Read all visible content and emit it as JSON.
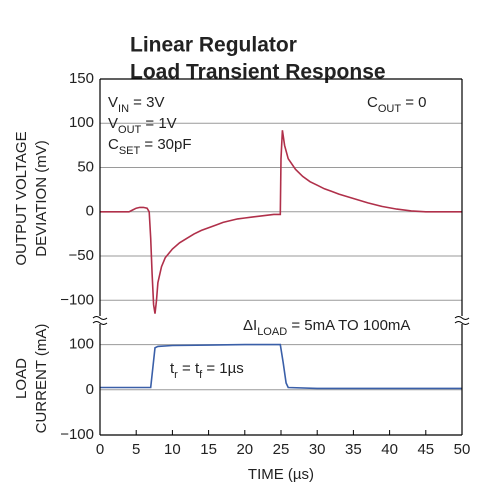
{
  "chart_data": [
    {
      "type": "line",
      "title": [
        "Linear Regulator",
        "Load Transient Response"
      ],
      "ylabel": [
        "OUTPUT VOLTAGE",
        "DEVIATION (mV)"
      ],
      "color": "#b0304a",
      "ylim": [
        -120,
        150
      ],
      "yticks": [
        {
          "value": -100,
          "label": "−100"
        },
        {
          "value": -50,
          "label": "−50"
        },
        0,
        50,
        100,
        150
      ],
      "grid": true,
      "xlim": [
        0,
        50
      ],
      "x": [
        0,
        1,
        2,
        3,
        4,
        4.5,
        5,
        5.5,
        6,
        6.5,
        6.8,
        7,
        7.2,
        7.4,
        7.6,
        7.8,
        8,
        8.5,
        9,
        10,
        11,
        12,
        13,
        14,
        15,
        16,
        17,
        18,
        19,
        20,
        21,
        22,
        23,
        24,
        24.9,
        25,
        25.2,
        25.5,
        26,
        27,
        28,
        29,
        30,
        31,
        32,
        33,
        35,
        37,
        39,
        41,
        43,
        45,
        47,
        50
      ],
      "values": [
        0,
        0,
        0,
        0,
        0,
        2,
        4,
        5,
        5,
        4,
        0,
        -30,
        -70,
        -105,
        -115,
        -100,
        -80,
        -62,
        -52,
        -42,
        -35,
        -30,
        -25,
        -21,
        -18,
        -15,
        -12,
        -10,
        -8,
        -7,
        -6,
        -5,
        -4,
        -3,
        -3,
        60,
        92,
        75,
        60,
        48,
        40,
        34,
        30,
        26,
        23,
        20,
        15,
        10,
        6,
        3,
        1,
        0,
        0,
        0
      ],
      "annotations": [
        {
          "parts": [
            {
              "text": "V"
            },
            {
              "text": "IN",
              "sub": true
            },
            {
              "text": " = 3V"
            }
          ]
        },
        {
          "parts": [
            {
              "text": "V"
            },
            {
              "text": "OUT",
              "sub": true
            },
            {
              "text": " = 1V"
            }
          ]
        },
        {
          "parts": [
            {
              "text": "C"
            },
            {
              "text": "SET",
              "sub": true
            },
            {
              "text": " = 30pF"
            }
          ]
        },
        {
          "parts": [
            {
              "text": "C"
            },
            {
              "text": "OUT",
              "sub": true
            },
            {
              "text": " = 0"
            }
          ]
        }
      ]
    },
    {
      "type": "line",
      "ylabel": [
        "LOAD",
        "CURRENT (mA)"
      ],
      "xlabel": "TIME (µs)",
      "color": "#3a5fa8",
      "ylim": [
        -100,
        150
      ],
      "yticks": [
        {
          "value": -100,
          "label": "−100"
        },
        0,
        100
      ],
      "grid": true,
      "xlim": [
        0,
        50
      ],
      "xticks": [
        0,
        5,
        10,
        15,
        20,
        25,
        30,
        35,
        40,
        45,
        50
      ],
      "x": [
        0,
        7,
        7.3,
        7.6,
        8,
        10,
        15,
        20,
        24.9,
        25.3,
        25.7,
        26,
        30,
        35,
        40,
        50
      ],
      "values": [
        5,
        5,
        50,
        93,
        96,
        98,
        99,
        100,
        100,
        60,
        15,
        5,
        3,
        3,
        3,
        3
      ],
      "annotations": [
        {
          "parts": [
            {
              "text": "ΔI"
            },
            {
              "text": "LOAD",
              "sub": true
            },
            {
              "text": " = 5mA TO 100mA"
            }
          ]
        },
        {
          "parts": [
            {
              "text": "t"
            },
            {
              "text": "r",
              "sub": true
            },
            {
              "text": " = t"
            },
            {
              "text": "f",
              "sub": true
            },
            {
              "text": " = 1µs"
            }
          ]
        }
      ]
    }
  ]
}
